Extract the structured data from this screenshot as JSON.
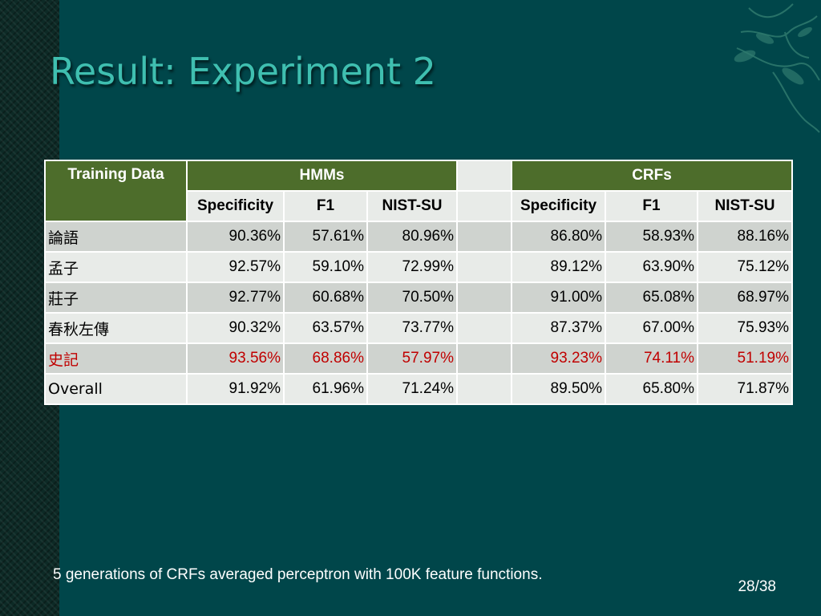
{
  "slide": {
    "title": "Result: Experiment 2",
    "footnote": "5 generations of CRFs averaged perceptron with 100K feature functions.",
    "page_number": "28/38",
    "colors": {
      "background": "#00464a",
      "title": "#3fbfb0",
      "header_green": "#4d6d2b",
      "highlight_red": "#c00000"
    },
    "icons": [
      "decorative-plant-ornament"
    ]
  },
  "table": {
    "col_training": "Training Data",
    "group_hmms": "HMMs",
    "group_crfs": "CRFs",
    "sub_headers": [
      "Specificity",
      "F1",
      "NIST-SU",
      "Specificity",
      "F1",
      "NIST-SU"
    ],
    "rows": [
      {
        "label": "論語",
        "values": [
          "90.36%",
          "57.61%",
          "80.96%",
          "86.80%",
          "58.93%",
          "88.16%"
        ]
      },
      {
        "label": "孟子",
        "values": [
          "92.57%",
          "59.10%",
          "72.99%",
          "89.12%",
          "63.90%",
          "75.12%"
        ]
      },
      {
        "label": "莊子",
        "values": [
          "92.77%",
          "60.68%",
          "70.50%",
          "91.00%",
          "65.08%",
          "68.97%"
        ]
      },
      {
        "label": "春秋左傳",
        "values": [
          "90.32%",
          "63.57%",
          "73.77%",
          "87.37%",
          "67.00%",
          "75.93%"
        ]
      },
      {
        "label": "史記",
        "values": [
          "93.56%",
          "68.86%",
          "57.97%",
          "93.23%",
          "74.11%",
          "51.19%"
        ]
      },
      {
        "label": "Overall",
        "values": [
          "91.92%",
          "61.96%",
          "71.24%",
          "89.50%",
          "65.80%",
          "71.87%"
        ]
      }
    ]
  }
}
